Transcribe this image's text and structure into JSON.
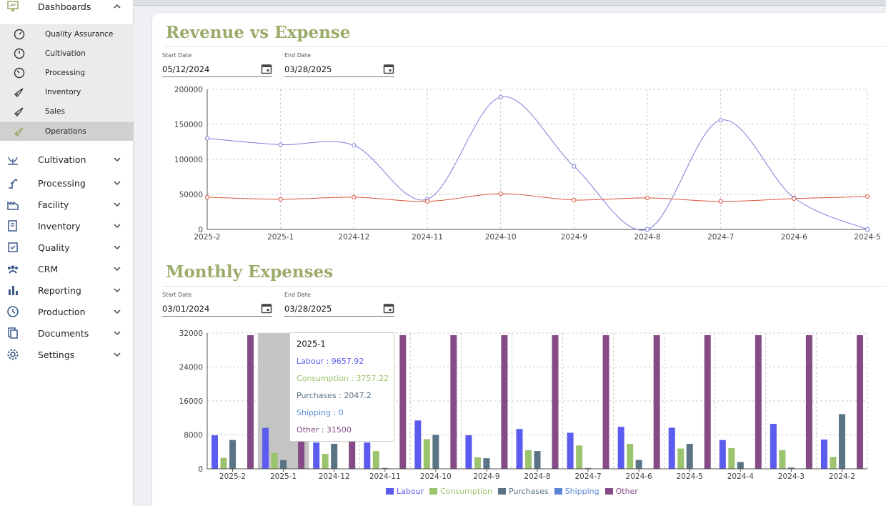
{
  "sidebar": {
    "dashboards_label": "Dashboards",
    "sub_items": [
      {
        "label": "Quality Assurance"
      },
      {
        "label": "Cultivation"
      },
      {
        "label": "Processing"
      },
      {
        "label": "Inventory"
      },
      {
        "label": "Sales"
      },
      {
        "label": "Operations"
      }
    ],
    "groups": [
      {
        "label": "Cultivation"
      },
      {
        "label": "Processing"
      },
      {
        "label": "Facility"
      },
      {
        "label": "Inventory"
      },
      {
        "label": "Quality"
      },
      {
        "label": "CRM"
      },
      {
        "label": "Reporting"
      },
      {
        "label": "Production"
      },
      {
        "label": "Documents"
      },
      {
        "label": "Settings"
      }
    ]
  },
  "revenue_section": {
    "title": "Revenue vs Expense",
    "start_label": "Start Date",
    "start_value": "05/12/2024",
    "end_label": "End Date",
    "end_value": "03/28/2025"
  },
  "expenses_section": {
    "title": "Monthly Expenses",
    "start_label": "Start Date",
    "start_value": "03/01/2024",
    "end_label": "End Date",
    "end_value": "03/28/2025"
  },
  "tooltip": {
    "title": "2025-1",
    "rows": [
      {
        "text": "Labour : 9657.92"
      },
      {
        "text": "Consumption : 3757.22"
      },
      {
        "text": "Purchases : 2047.2"
      },
      {
        "text": "Shipping : 0"
      },
      {
        "text": "Other : 31500"
      }
    ]
  },
  "colors": {
    "accent": "#9aab6a",
    "revenue": "#7b7fd6",
    "expense": "#d9553a",
    "labour": "#5b5bf0",
    "consumption": "#9cc46e",
    "purchases": "#5a7486",
    "shipping": "#5b86d8",
    "other": "#864a86"
  },
  "chart_data": [
    {
      "type": "line",
      "title": "Revenue vs Expense",
      "categories": [
        "2025-2",
        "2025-1",
        "2024-12",
        "2024-11",
        "2024-10",
        "2024-9",
        "2024-8",
        "2024-7",
        "2024-6",
        "2024-5"
      ],
      "series": [
        {
          "name": "Revenue",
          "values": [
            130000,
            121000,
            120000,
            43000,
            189000,
            90000,
            0,
            156000,
            45000,
            0
          ]
        },
        {
          "name": "Expense",
          "values": [
            46000,
            43000,
            46000,
            40000,
            51000,
            42000,
            45000,
            40000,
            44000,
            47000
          ]
        }
      ],
      "yticks": [
        "200000",
        "150000",
        "100000",
        "50000",
        "0"
      ],
      "ylim": [
        0,
        200000
      ]
    },
    {
      "type": "bar",
      "title": "Monthly Expenses",
      "categories": [
        "2025-2",
        "2025-1",
        "2024-12",
        "2024-11",
        "2024-10",
        "2024-9",
        "2024-8",
        "2024-7",
        "2024-6",
        "2024-5",
        "2024-4",
        "2024-3",
        "2024-2"
      ],
      "series": [
        {
          "name": "Labour",
          "values": [
            7900,
            9657.92,
            6200,
            6200,
            11400,
            7900,
            9400,
            8500,
            9900,
            9700,
            6800,
            10600,
            6900
          ]
        },
        {
          "name": "Consumption",
          "values": [
            2600,
            3757.22,
            3500,
            4200,
            7000,
            2700,
            4400,
            5500,
            5900,
            4800,
            4900,
            4400,
            2800
          ]
        },
        {
          "name": "Purchases",
          "values": [
            6800,
            2047.2,
            5900,
            200,
            8000,
            2500,
            4200,
            200,
            2100,
            5900,
            1600,
            300,
            12900
          ]
        },
        {
          "name": "Shipping",
          "values": [
            0,
            0,
            0,
            0,
            0,
            0,
            0,
            0,
            0,
            0,
            0,
            0,
            0
          ]
        },
        {
          "name": "Other",
          "values": [
            31500,
            31500,
            31500,
            31500,
            31500,
            31500,
            31500,
            31500,
            31500,
            31500,
            31500,
            31500,
            31500
          ]
        }
      ],
      "yticks": [
        "32000",
        "24000",
        "16000",
        "8000",
        "0"
      ],
      "ylim": [
        0,
        32000
      ],
      "legend": [
        "Labour",
        "Consumption",
        "Purchases",
        "Shipping",
        "Other"
      ],
      "highlighted_category": "2025-1"
    }
  ]
}
